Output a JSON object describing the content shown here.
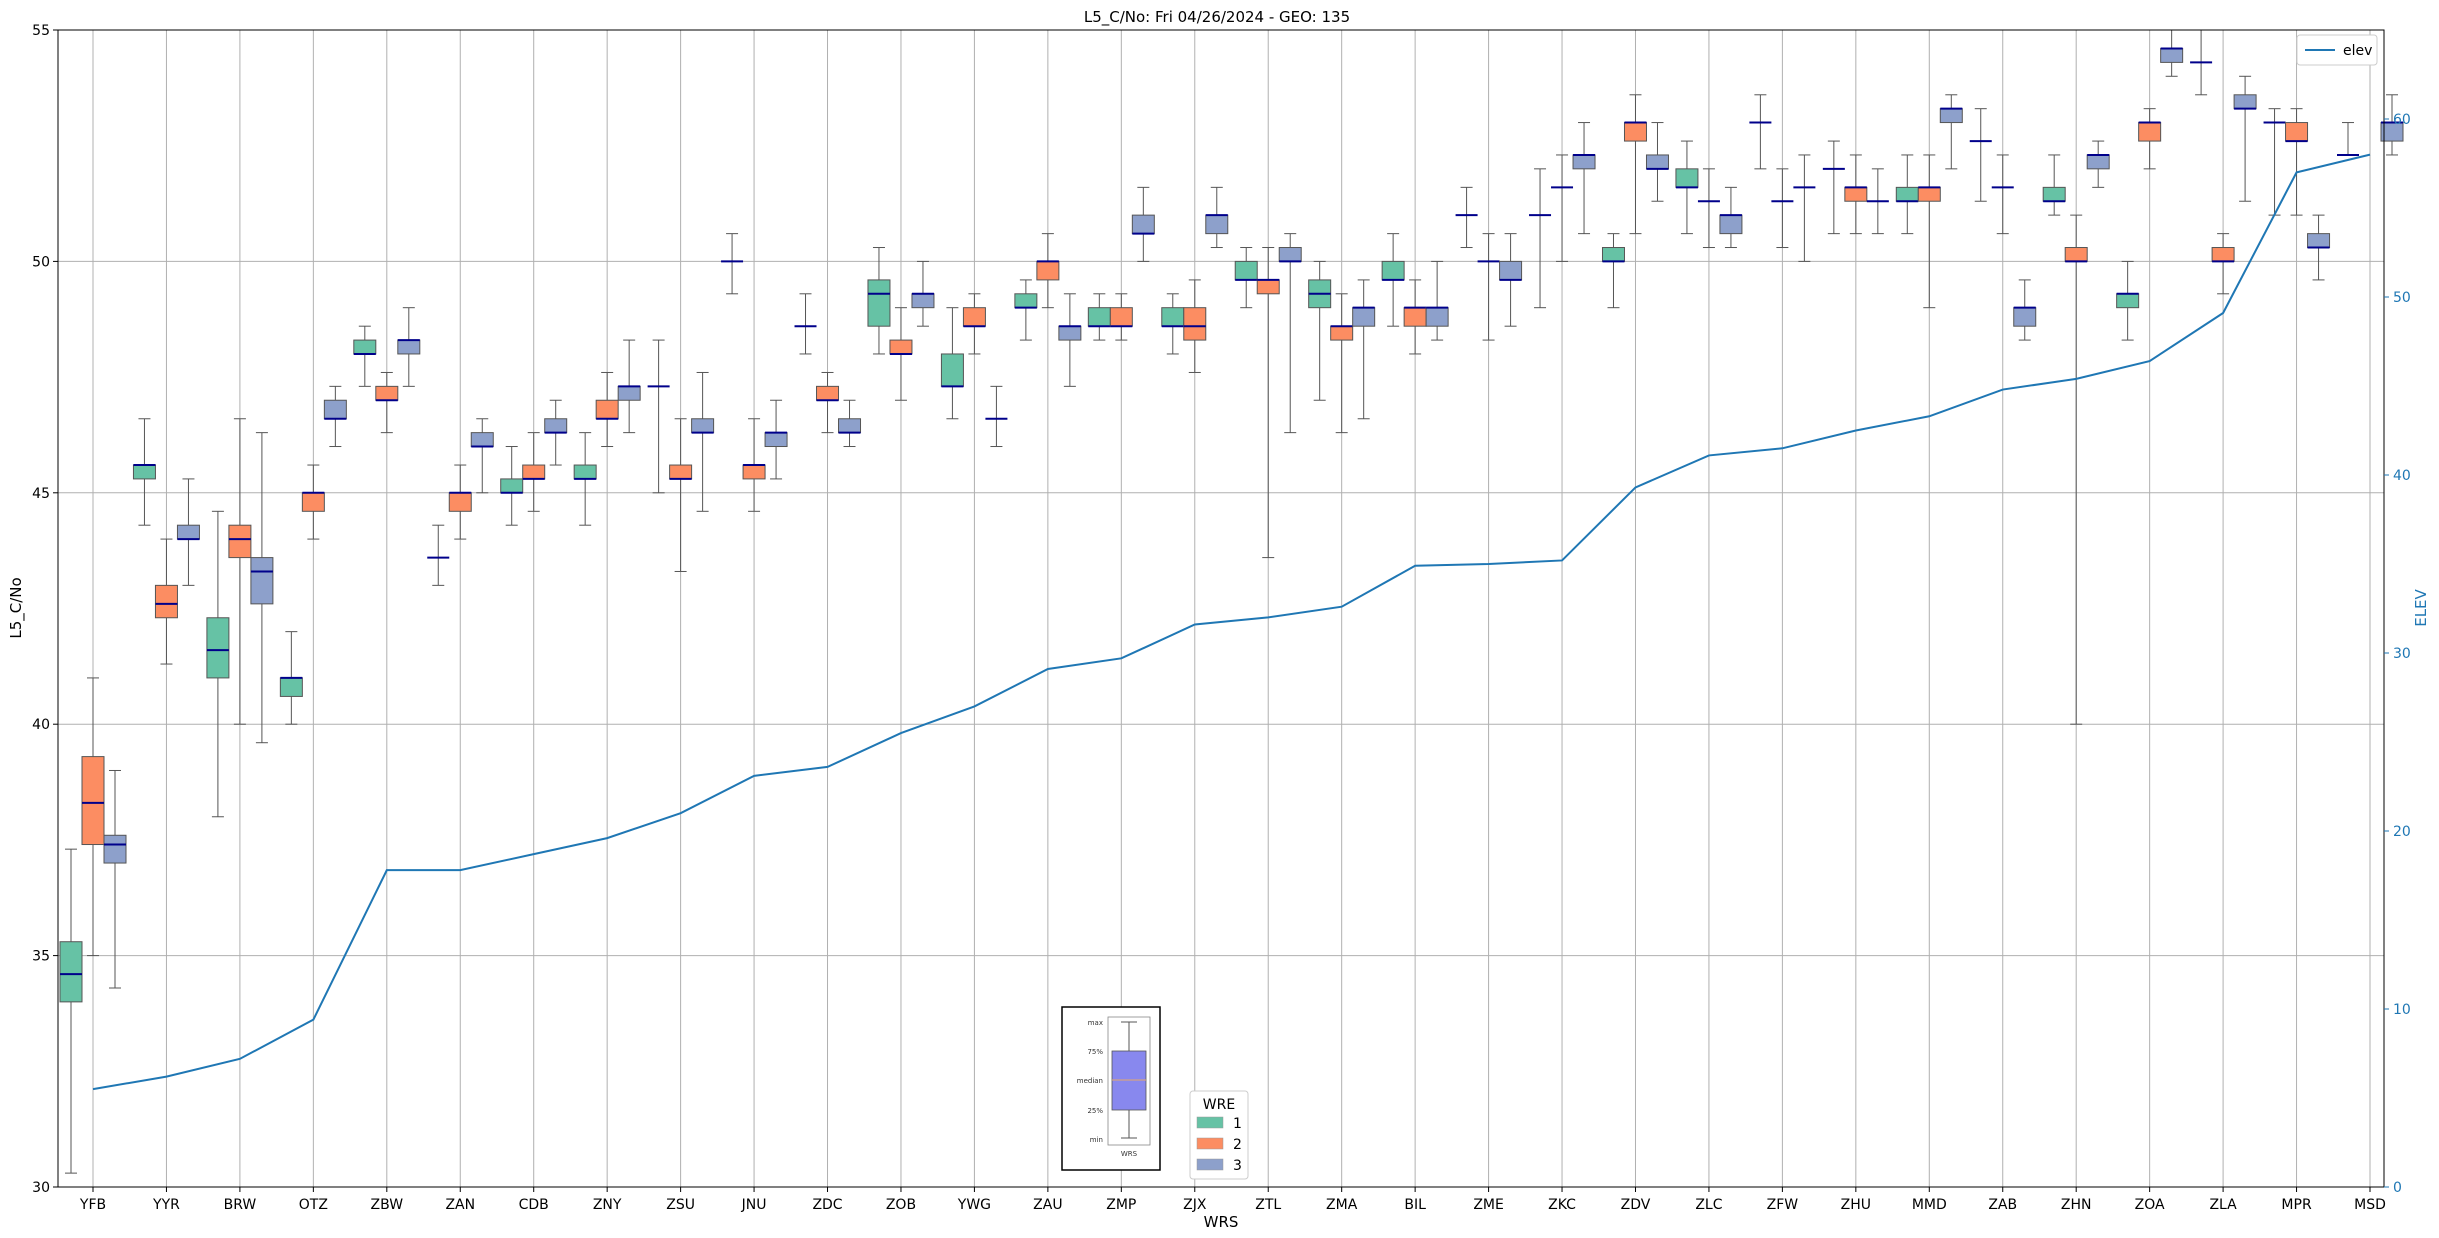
{
  "chart_data": {
    "type": "box",
    "title": "L5_C/No: Fri 04/26/2024 - GEO: 135",
    "xlabel": "WRS",
    "ylabel": "L5_C/No",
    "y2label": "ELEV",
    "ylim": [
      30,
      55
    ],
    "y2lim": [
      0,
      65
    ],
    "yticks": [
      30,
      35,
      40,
      45,
      50,
      55
    ],
    "y2ticks": [
      0,
      10,
      20,
      30,
      40,
      50,
      60
    ],
    "grid": true,
    "categories": [
      "YFB",
      "YYR",
      "BRW",
      "OTZ",
      "ZBW",
      "ZAN",
      "CDB",
      "ZNY",
      "ZSU",
      "JNU",
      "ZDC",
      "ZOB",
      "YWG",
      "ZAU",
      "ZMP",
      "ZJX",
      "ZTL",
      "ZMA",
      "BIL",
      "ZME",
      "ZKC",
      "ZDV",
      "ZLC",
      "ZFW",
      "ZHU",
      "MMD",
      "ZAB",
      "ZHN",
      "ZOA",
      "ZLA",
      "MPR",
      "MSD"
    ],
    "legend": {
      "title": "WRE",
      "placement": "lower-center",
      "entries": [
        "1",
        "2",
        "3"
      ]
    },
    "series_colors": {
      "1": "#66c2a5",
      "2": "#fc8d62",
      "3": "#8da0cb"
    },
    "median_color": "#00008b",
    "elev_color": "#1f77b4",
    "elev_legend": {
      "label": "elev",
      "placement": "top-right"
    },
    "boxes": [
      {
        "category": "YFB",
        "wre": 1,
        "min": 30.3,
        "q1": 34.0,
        "median": 34.6,
        "q3": 35.3,
        "max": 37.3
      },
      {
        "category": "YFB",
        "wre": 2,
        "min": 35.0,
        "q1": 37.4,
        "median": 38.3,
        "q3": 39.3,
        "max": 41.0
      },
      {
        "category": "YFB",
        "wre": 3,
        "min": 34.3,
        "q1": 37.0,
        "median": 37.4,
        "q3": 37.6,
        "max": 39.0
      },
      {
        "category": "YYR",
        "wre": 1,
        "min": 44.3,
        "q1": 45.3,
        "median": 45.6,
        "q3": 45.6,
        "max": 46.6
      },
      {
        "category": "YYR",
        "wre": 2,
        "min": 41.3,
        "q1": 42.3,
        "median": 42.6,
        "q3": 43.0,
        "max": 44.0
      },
      {
        "category": "YYR",
        "wre": 3,
        "min": 43.0,
        "q1": 44.0,
        "median": 44.0,
        "q3": 44.3,
        "max": 45.3
      },
      {
        "category": "BRW",
        "wre": 1,
        "min": 38.0,
        "q1": 41.0,
        "median": 41.6,
        "q3": 42.3,
        "max": 44.6
      },
      {
        "category": "BRW",
        "wre": 2,
        "min": 40.0,
        "q1": 43.6,
        "median": 44.0,
        "q3": 44.3,
        "max": 46.6
      },
      {
        "category": "BRW",
        "wre": 3,
        "min": 39.6,
        "q1": 42.6,
        "median": 43.3,
        "q3": 43.6,
        "max": 46.3
      },
      {
        "category": "OTZ",
        "wre": 1,
        "min": 40.0,
        "q1": 40.6,
        "median": 41.0,
        "q3": 41.0,
        "max": 42.0
      },
      {
        "category": "OTZ",
        "wre": 2,
        "min": 44.0,
        "q1": 44.6,
        "median": 45.0,
        "q3": 45.0,
        "max": 45.6
      },
      {
        "category": "OTZ",
        "wre": 3,
        "min": 46.0,
        "q1": 46.6,
        "median": 46.6,
        "q3": 47.0,
        "max": 47.3
      },
      {
        "category": "ZBW",
        "wre": 1,
        "min": 47.3,
        "q1": 48.0,
        "median": 48.0,
        "q3": 48.3,
        "max": 48.6
      },
      {
        "category": "ZBW",
        "wre": 2,
        "min": 46.3,
        "q1": 47.0,
        "median": 47.0,
        "q3": 47.3,
        "max": 47.6
      },
      {
        "category": "ZBW",
        "wre": 3,
        "min": 47.3,
        "q1": 48.0,
        "median": 48.3,
        "q3": 48.3,
        "max": 49.0
      },
      {
        "category": "ZAN",
        "wre": 2,
        "min": 44.0,
        "q1": 44.6,
        "median": 45.0,
        "q3": 45.0,
        "max": 45.6
      },
      {
        "category": "ZAN",
        "wre": 3,
        "min": 45.0,
        "q1": 46.0,
        "median": 46.0,
        "q3": 46.3,
        "max": 46.6
      },
      {
        "category": "ZAN",
        "wre": 0,
        "min": 43.0,
        "q1": 43.6,
        "median": 43.6,
        "q3": 43.6,
        "max": 44.3
      },
      {
        "category": "CDB",
        "wre": 1,
        "min": 44.3,
        "q1": 45.0,
        "median": 45.0,
        "q3": 45.3,
        "max": 46.0
      },
      {
        "category": "CDB",
        "wre": 2,
        "min": 44.6,
        "q1": 45.3,
        "median": 45.3,
        "q3": 45.6,
        "max": 46.3
      },
      {
        "category": "CDB",
        "wre": 3,
        "min": 45.6,
        "q1": 46.3,
        "median": 46.3,
        "q3": 46.6,
        "max": 47.0
      },
      {
        "category": "ZNY",
        "wre": 1,
        "min": 44.3,
        "q1": 45.3,
        "median": 45.3,
        "q3": 45.6,
        "max": 46.3
      },
      {
        "category": "ZNY",
        "wre": 2,
        "min": 46.0,
        "q1": 46.6,
        "median": 46.6,
        "q3": 47.0,
        "max": 47.6
      },
      {
        "category": "ZNY",
        "wre": 3,
        "min": 46.3,
        "q1": 47.0,
        "median": 47.3,
        "q3": 47.3,
        "max": 48.3
      },
      {
        "category": "ZSU",
        "wre": 1,
        "min": 45.0,
        "q1": 47.3,
        "median": 47.3,
        "q3": 47.3,
        "max": 48.3
      },
      {
        "category": "ZSU",
        "wre": 2,
        "min": 43.3,
        "q1": 45.3,
        "median": 45.3,
        "q3": 45.6,
        "max": 46.6
      },
      {
        "category": "ZSU",
        "wre": 3,
        "min": 44.6,
        "q1": 46.3,
        "median": 46.3,
        "q3": 46.6,
        "max": 47.6
      },
      {
        "category": "JNU",
        "wre": 1,
        "min": 49.3,
        "q1": 50.0,
        "median": 50.0,
        "q3": 50.0,
        "max": 50.6
      },
      {
        "category": "JNU",
        "wre": 2,
        "min": 44.6,
        "q1": 45.3,
        "median": 45.6,
        "q3": 45.6,
        "max": 46.6
      },
      {
        "category": "JNU",
        "wre": 3,
        "min": 45.3,
        "q1": 46.0,
        "median": 46.3,
        "q3": 46.3,
        "max": 47.0
      },
      {
        "category": "ZDC",
        "wre": 1,
        "min": 48.0,
        "q1": 48.6,
        "median": 48.6,
        "q3": 48.6,
        "max": 49.3
      },
      {
        "category": "ZDC",
        "wre": 2,
        "min": 46.3,
        "q1": 47.0,
        "median": 47.0,
        "q3": 47.3,
        "max": 47.6
      },
      {
        "category": "ZDC",
        "wre": 3,
        "min": 46.0,
        "q1": 46.3,
        "median": 46.3,
        "q3": 46.6,
        "max": 47.0
      },
      {
        "category": "ZOB",
        "wre": 1,
        "min": 48.0,
        "q1": 48.6,
        "median": 49.3,
        "q3": 49.6,
        "max": 50.3
      },
      {
        "category": "ZOB",
        "wre": 2,
        "min": 47.0,
        "q1": 48.0,
        "median": 48.0,
        "q3": 48.3,
        "max": 49.0
      },
      {
        "category": "ZOB",
        "wre": 3,
        "min": 48.6,
        "q1": 49.0,
        "median": 49.3,
        "q3": 49.3,
        "max": 50.0
      },
      {
        "category": "YWG",
        "wre": 1,
        "min": 46.6,
        "q1": 47.3,
        "median": 47.3,
        "q3": 48.0,
        "max": 49.0
      },
      {
        "category": "YWG",
        "wre": 2,
        "min": 48.0,
        "q1": 48.6,
        "median": 48.6,
        "q3": 49.0,
        "max": 49.3
      },
      {
        "category": "YWG",
        "wre": 3,
        "min": 46.0,
        "q1": 46.6,
        "median": 46.6,
        "q3": 46.6,
        "max": 47.3
      },
      {
        "category": "ZAU",
        "wre": 1,
        "min": 48.3,
        "q1": 49.0,
        "median": 49.0,
        "q3": 49.3,
        "max": 49.6
      },
      {
        "category": "ZAU",
        "wre": 2,
        "min": 49.0,
        "q1": 49.6,
        "median": 50.0,
        "q3": 50.0,
        "max": 50.6
      },
      {
        "category": "ZAU",
        "wre": 3,
        "min": 47.3,
        "q1": 48.3,
        "median": 48.6,
        "q3": 48.6,
        "max": 49.3
      },
      {
        "category": "ZMP",
        "wre": 1,
        "min": 48.3,
        "q1": 48.6,
        "median": 48.6,
        "q3": 49.0,
        "max": 49.3
      },
      {
        "category": "ZMP",
        "wre": 2,
        "min": 48.3,
        "q1": 48.6,
        "median": 48.6,
        "q3": 49.0,
        "max": 49.3
      },
      {
        "category": "ZMP",
        "wre": 3,
        "min": 50.0,
        "q1": 50.6,
        "median": 50.6,
        "q3": 51.0,
        "max": 51.6
      },
      {
        "category": "ZJX",
        "wre": 1,
        "min": 48.0,
        "q1": 48.6,
        "median": 48.6,
        "q3": 49.0,
        "max": 49.3
      },
      {
        "category": "ZJX",
        "wre": 2,
        "min": 47.6,
        "q1": 48.3,
        "median": 48.6,
        "q3": 49.0,
        "max": 49.6
      },
      {
        "category": "ZJX",
        "wre": 3,
        "min": 50.3,
        "q1": 50.6,
        "median": 51.0,
        "q3": 51.0,
        "max": 51.6
      },
      {
        "category": "ZTL",
        "wre": 1,
        "min": 49.0,
        "q1": 49.6,
        "median": 49.6,
        "q3": 50.0,
        "max": 50.3
      },
      {
        "category": "ZTL",
        "wre": 2,
        "min": 43.6,
        "q1": 49.3,
        "median": 49.6,
        "q3": 49.6,
        "max": 50.3
      },
      {
        "category": "ZTL",
        "wre": 3,
        "min": 46.3,
        "q1": 50.0,
        "median": 50.0,
        "q3": 50.3,
        "max": 50.6
      },
      {
        "category": "ZMA",
        "wre": 1,
        "min": 47.0,
        "q1": 49.0,
        "median": 49.3,
        "q3": 49.6,
        "max": 50.0
      },
      {
        "category": "ZMA",
        "wre": 2,
        "min": 46.3,
        "q1": 48.3,
        "median": 48.6,
        "q3": 48.6,
        "max": 49.3
      },
      {
        "category": "ZMA",
        "wre": 3,
        "min": 46.6,
        "q1": 48.6,
        "median": 49.0,
        "q3": 49.0,
        "max": 49.6
      },
      {
        "category": "BIL",
        "wre": 1,
        "min": 48.6,
        "q1": 49.6,
        "median": 49.6,
        "q3": 50.0,
        "max": 50.6
      },
      {
        "category": "BIL",
        "wre": 2,
        "min": 48.0,
        "q1": 48.6,
        "median": 49.0,
        "q3": 49.0,
        "max": 49.6
      },
      {
        "category": "BIL",
        "wre": 3,
        "min": 48.3,
        "q1": 48.6,
        "median": 49.0,
        "q3": 49.0,
        "max": 50.0
      },
      {
        "category": "ZME",
        "wre": 1,
        "min": 50.3,
        "q1": 51.0,
        "median": 51.0,
        "q3": 51.0,
        "max": 51.6
      },
      {
        "category": "ZME",
        "wre": 2,
        "min": 48.3,
        "q1": 50.0,
        "median": 50.0,
        "q3": 50.0,
        "max": 50.6
      },
      {
        "category": "ZME",
        "wre": 3,
        "min": 48.6,
        "q1": 49.6,
        "median": 49.6,
        "q3": 50.0,
        "max": 50.6
      },
      {
        "category": "ZKC",
        "wre": 1,
        "min": 49.0,
        "q1": 51.0,
        "median": 51.0,
        "q3": 51.0,
        "max": 52.0
      },
      {
        "category": "ZKC",
        "wre": 2,
        "min": 50.0,
        "q1": 51.6,
        "median": 51.6,
        "q3": 51.6,
        "max": 52.3
      },
      {
        "category": "ZKC",
        "wre": 3,
        "min": 50.6,
        "q1": 52.0,
        "median": 52.3,
        "q3": 52.3,
        "max": 53.0
      },
      {
        "category": "ZDV",
        "wre": 1,
        "min": 49.0,
        "q1": 50.0,
        "median": 50.0,
        "q3": 50.3,
        "max": 50.6
      },
      {
        "category": "ZDV",
        "wre": 2,
        "min": 50.6,
        "q1": 52.6,
        "median": 53.0,
        "q3": 53.0,
        "max": 53.6
      },
      {
        "category": "ZDV",
        "wre": 3,
        "min": 51.3,
        "q1": 52.0,
        "median": 52.0,
        "q3": 52.3,
        "max": 53.0
      },
      {
        "category": "ZLC",
        "wre": 1,
        "min": 50.6,
        "q1": 51.6,
        "median": 51.6,
        "q3": 52.0,
        "max": 52.6
      },
      {
        "category": "ZLC",
        "wre": 2,
        "min": 50.3,
        "q1": 51.3,
        "median": 51.3,
        "q3": 51.3,
        "max": 52.0
      },
      {
        "category": "ZLC",
        "wre": 3,
        "min": 50.3,
        "q1": 50.6,
        "median": 51.0,
        "q3": 51.0,
        "max": 51.6
      },
      {
        "category": "ZFW",
        "wre": 1,
        "min": 52.0,
        "q1": 53.0,
        "median": 53.0,
        "q3": 53.0,
        "max": 53.6
      },
      {
        "category": "ZFW",
        "wre": 2,
        "min": 50.3,
        "q1": 51.3,
        "median": 51.3,
        "q3": 51.3,
        "max": 52.0
      },
      {
        "category": "ZFW",
        "wre": 3,
        "min": 50.0,
        "q1": 51.6,
        "median": 51.6,
        "q3": 51.6,
        "max": 52.3
      },
      {
        "category": "ZHU",
        "wre": 1,
        "min": 50.6,
        "q1": 52.0,
        "median": 52.0,
        "q3": 52.0,
        "max": 52.6
      },
      {
        "category": "ZHU",
        "wre": 2,
        "min": 50.6,
        "q1": 51.3,
        "median": 51.6,
        "q3": 51.6,
        "max": 52.3
      },
      {
        "category": "ZHU",
        "wre": 3,
        "min": 50.6,
        "q1": 51.3,
        "median": 51.3,
        "q3": 51.3,
        "max": 52.0
      },
      {
        "category": "MMD",
        "wre": 1,
        "min": 50.6,
        "q1": 51.3,
        "median": 51.3,
        "q3": 51.6,
        "max": 52.3
      },
      {
        "category": "MMD",
        "wre": 2,
        "min": 49.0,
        "q1": 51.3,
        "median": 51.6,
        "q3": 51.6,
        "max": 52.3
      },
      {
        "category": "MMD",
        "wre": 3,
        "min": 52.0,
        "q1": 53.0,
        "median": 53.3,
        "q3": 53.3,
        "max": 53.6
      },
      {
        "category": "ZAB",
        "wre": 1,
        "min": 51.3,
        "q1": 52.6,
        "median": 52.6,
        "q3": 52.6,
        "max": 53.3
      },
      {
        "category": "ZAB",
        "wre": 2,
        "min": 50.6,
        "q1": 51.6,
        "median": 51.6,
        "q3": 51.6,
        "max": 52.3
      },
      {
        "category": "ZAB",
        "wre": 3,
        "min": 48.3,
        "q1": 48.6,
        "median": 49.0,
        "q3": 49.0,
        "max": 49.6
      },
      {
        "category": "ZHN",
        "wre": 1,
        "min": 51.0,
        "q1": 51.3,
        "median": 51.3,
        "q3": 51.6,
        "max": 52.3
      },
      {
        "category": "ZHN",
        "wre": 2,
        "min": 40.0,
        "q1": 50.0,
        "median": 50.0,
        "q3": 50.3,
        "max": 51.0
      },
      {
        "category": "ZHN",
        "wre": 3,
        "min": 51.6,
        "q1": 52.0,
        "median": 52.3,
        "q3": 52.3,
        "max": 52.6
      },
      {
        "category": "ZOA",
        "wre": 1,
        "min": 48.3,
        "q1": 49.0,
        "median": 49.3,
        "q3": 49.3,
        "max": 50.0
      },
      {
        "category": "ZOA",
        "wre": 2,
        "min": 52.0,
        "q1": 52.6,
        "median": 53.0,
        "q3": 53.0,
        "max": 53.3
      },
      {
        "category": "ZOA",
        "wre": 3,
        "min": 54.0,
        "q1": 54.3,
        "median": 54.6,
        "q3": 54.6,
        "max": 55.0
      },
      {
        "category": "ZLA",
        "wre": 1,
        "min": 53.6,
        "q1": 54.3,
        "median": 54.3,
        "q3": 54.3,
        "max": 55.0
      },
      {
        "category": "ZLA",
        "wre": 2,
        "min": 49.3,
        "q1": 50.0,
        "median": 50.0,
        "q3": 50.3,
        "max": 50.6
      },
      {
        "category": "ZLA",
        "wre": 3,
        "min": 51.3,
        "q1": 53.3,
        "median": 53.3,
        "q3": 53.6,
        "max": 54.0
      },
      {
        "category": "MPR",
        "wre": 1,
        "min": 51.0,
        "q1": 53.0,
        "median": 53.0,
        "q3": 53.0,
        "max": 53.3
      },
      {
        "category": "MPR",
        "wre": 2,
        "min": 51.0,
        "q1": 52.6,
        "median": 52.6,
        "q3": 53.0,
        "max": 53.3
      },
      {
        "category": "MPR",
        "wre": 3,
        "min": 49.6,
        "q1": 50.3,
        "median": 50.3,
        "q3": 50.6,
        "max": 51.0
      },
      {
        "category": "MSD",
        "wre": 1,
        "min": 52.3,
        "q1": 52.3,
        "median": 52.3,
        "q3": 52.3,
        "max": 53.0
      },
      {
        "category": "MSD",
        "wre": 3,
        "min": 52.3,
        "q1": 52.6,
        "median": 53.0,
        "q3": 53.0,
        "max": 53.6
      }
    ],
    "elev": [
      5.5,
      6.2,
      7.2,
      9.4,
      17.8,
      17.8,
      18.7,
      19.6,
      21.0,
      23.1,
      23.6,
      25.5,
      27.0,
      29.1,
      29.7,
      31.6,
      32.0,
      32.6,
      34.9,
      35.0,
      35.2,
      39.3,
      41.1,
      41.5,
      42.5,
      43.3,
      44.8,
      45.4,
      46.4,
      49.1,
      57.0,
      58.0
    ],
    "key_box": {
      "labels": [
        "max",
        "75%",
        "median",
        "25%",
        "min"
      ],
      "caption": "WRS"
    }
  }
}
